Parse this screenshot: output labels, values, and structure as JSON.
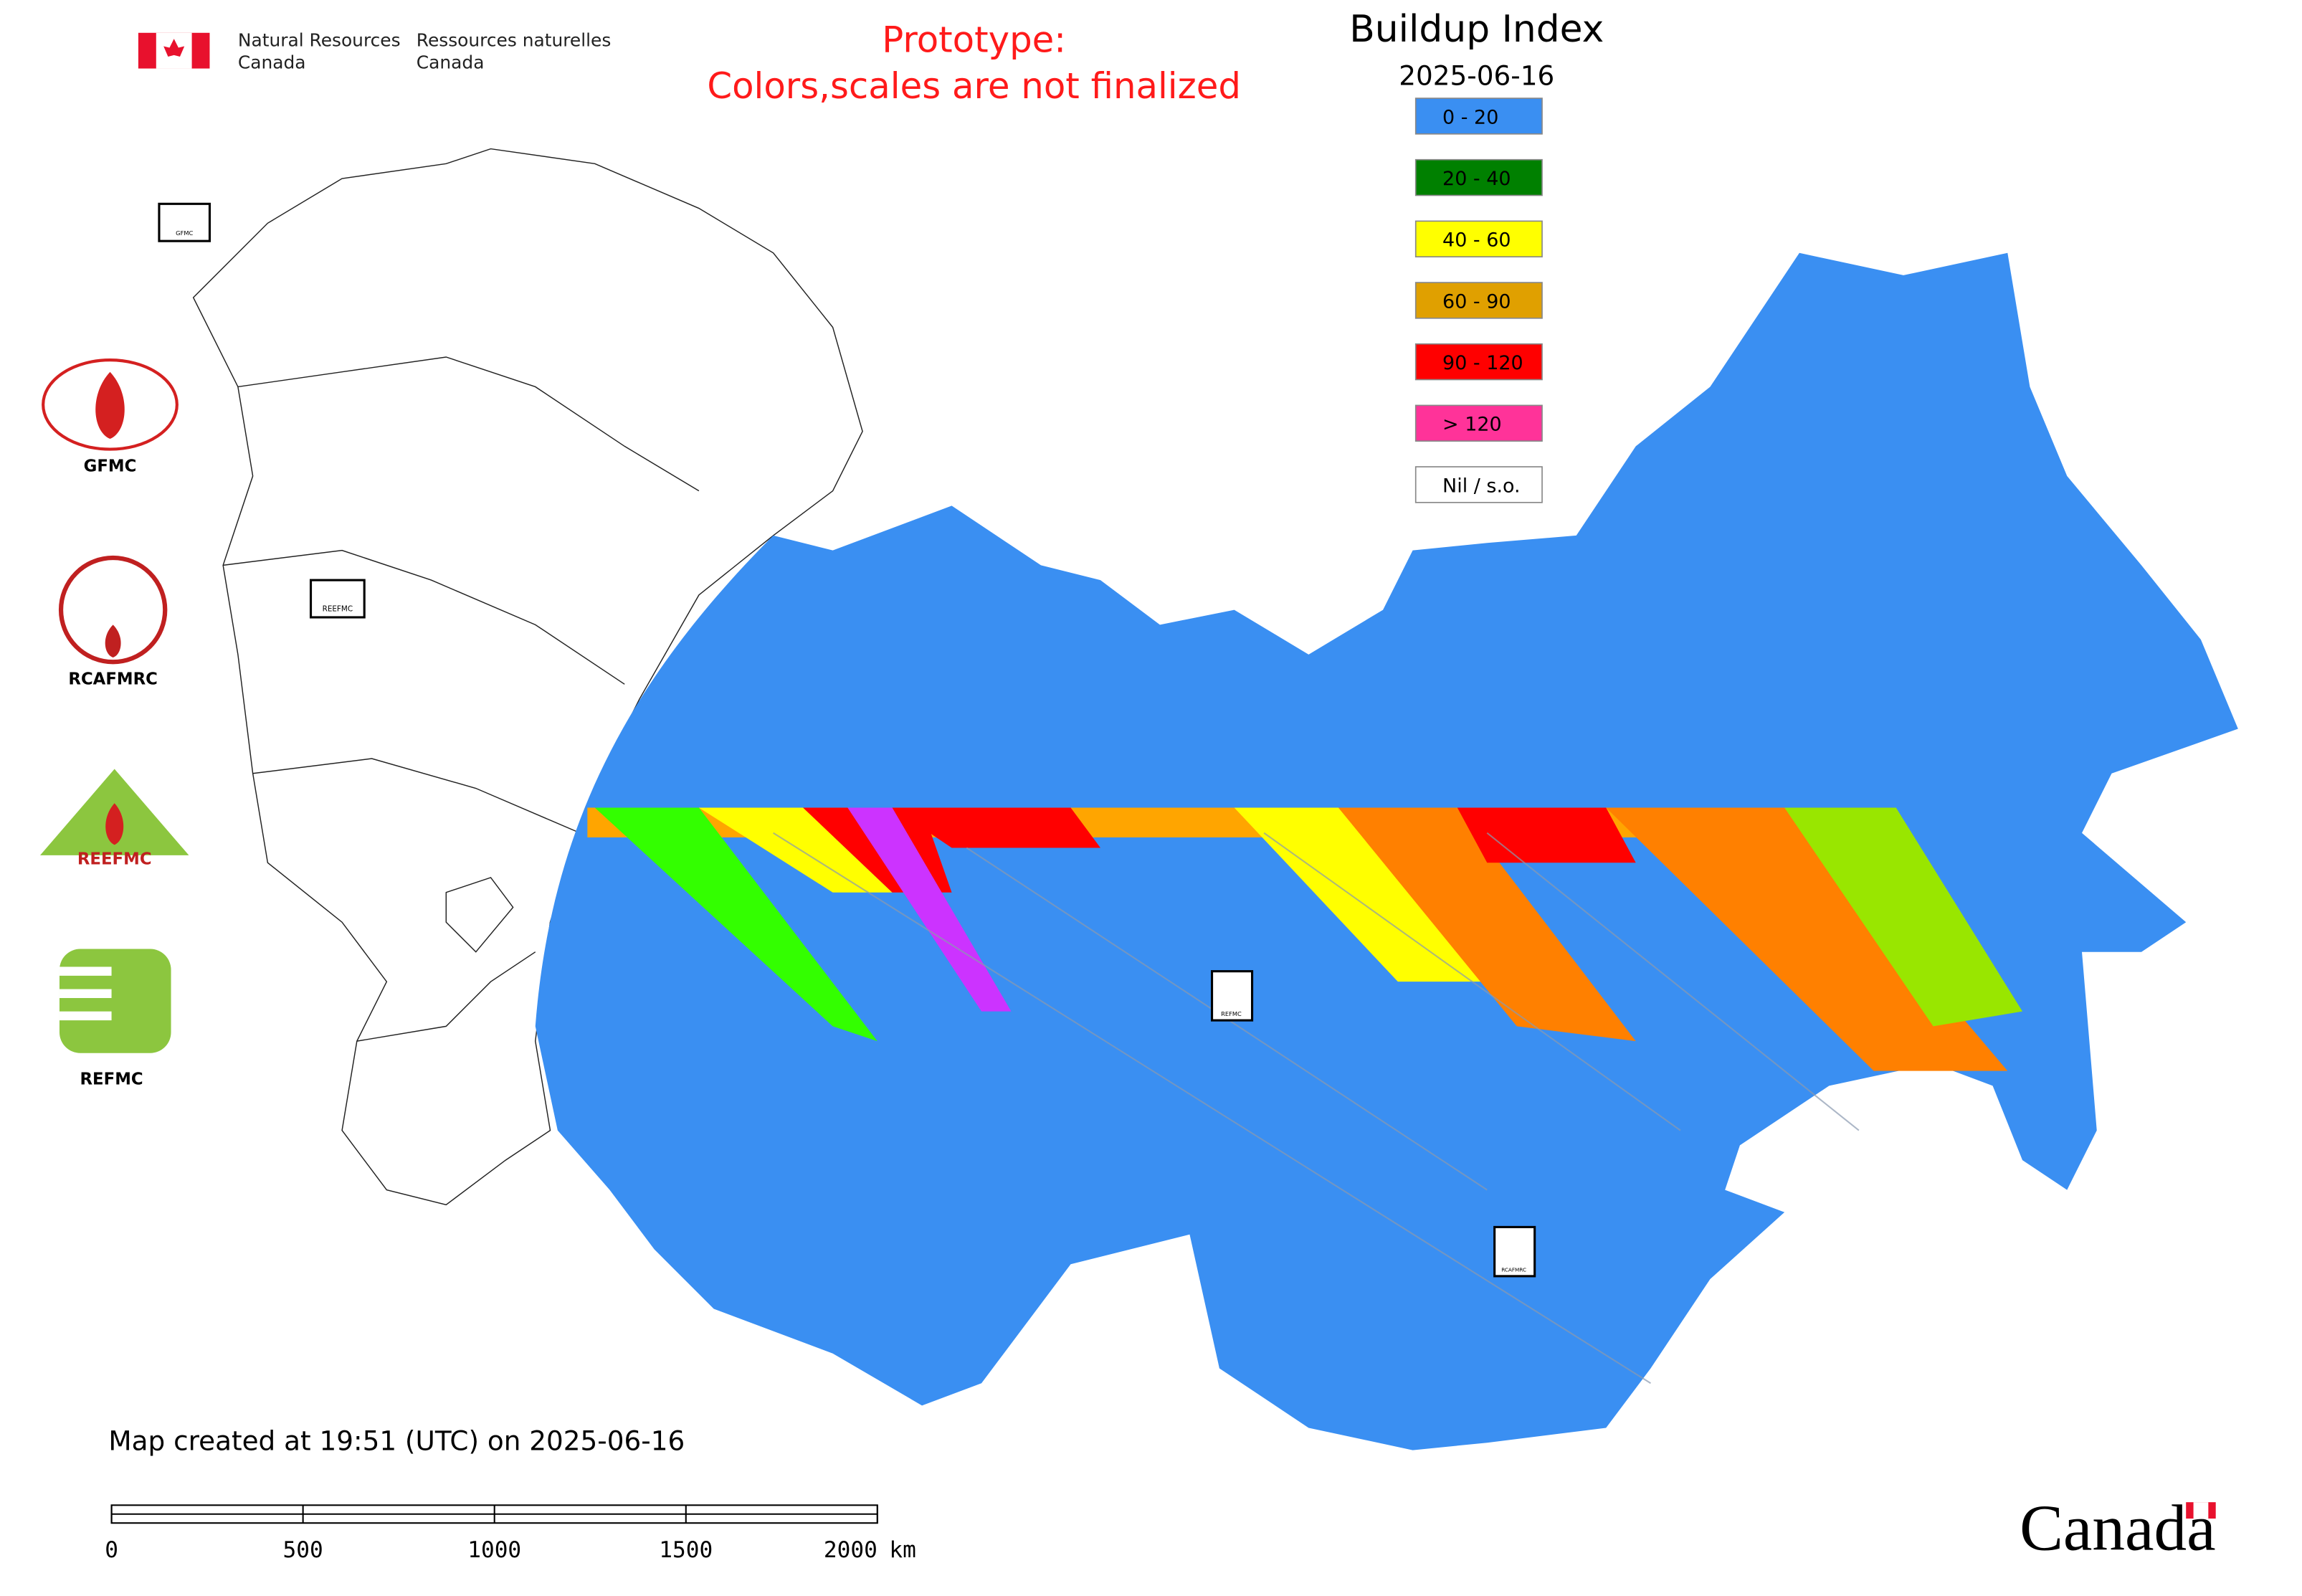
{
  "header": {
    "department_en": [
      "Natural Resources",
      "Canada"
    ],
    "department_fr": [
      "Ressources naturelles",
      "Canada"
    ]
  },
  "notice": [
    "Prototype:",
    "Colors,scales are not finalized"
  ],
  "legend": {
    "title": "Buildup Index",
    "date": "2025-06-16",
    "items": [
      {
        "label": "0 - 20",
        "color": "#3a8ff2"
      },
      {
        "label": "20 - 40",
        "color": "#008000"
      },
      {
        "label": "40 - 60",
        "color": "#ffff00"
      },
      {
        "label": "60 - 90",
        "color": "#e0a000"
      },
      {
        "label": "90 - 120",
        "color": "#ff0000"
      },
      {
        "label": "> 120",
        "color": "#ff3399"
      },
      {
        "label": "Nil / s.o.",
        "color": "#ffffff"
      }
    ]
  },
  "partners": [
    "GFMC",
    "RCAFMRC",
    "REEFMC",
    "REFMC"
  ],
  "map_markers": [
    "GFMC",
    "REEFMC",
    "REFMC",
    "RCAFMRC"
  ],
  "footer": {
    "created": "Map created at 19:51 (UTC) on 2025-06-16",
    "wordmark": "Canada"
  },
  "scale_bar": {
    "ticks": [
      0,
      500,
      1000,
      1500,
      2000
    ],
    "unit": "km"
  }
}
